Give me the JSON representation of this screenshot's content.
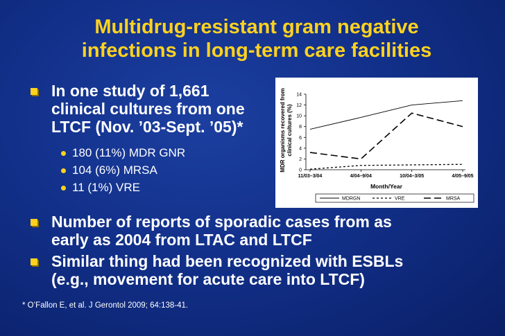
{
  "slide": {
    "title_line1": "Multidrug-resistant gram negative",
    "title_line2": "infections in long-term care facilities",
    "bullet1_lines": [
      "In one study of 1,661",
      "clinical cultures from one",
      "LTCF (Nov. ’03-Sept. ’05)*"
    ],
    "sub_bullets": [
      "180 (11%) MDR GNR",
      "104 (6%) MRSA",
      "11 (1%) VRE"
    ],
    "bullet2_lines": [
      "Number of reports of sporadic cases from as",
      "early as 2004 from LTAC and LTCF"
    ],
    "bullet3_lines": [
      "Similar thing had been recognized with ESBLs",
      "(e.g., movement for acute care into LTCF)"
    ],
    "footnote": "* O’Fallon E, et al. J Gerontol 2009; 64:138-41."
  },
  "chart_data": {
    "type": "line",
    "categories": [
      "11/03–3/04",
      "4/04–9/04",
      "10/04–3/05",
      "4/05–9/05"
    ],
    "ylabel_line1": "MDR organisms recovered from",
    "ylabel_line2": "clinical cultures (%)",
    "xlabel": "Month/Year",
    "ylim": [
      0,
      14
    ],
    "yticks": [
      "0",
      "2",
      "4",
      "6",
      "8",
      "10",
      "12",
      "14"
    ],
    "series": [
      {
        "name": "MDRGN",
        "values": [
          7.5,
          9.7,
          12,
          12.8
        ],
        "style": "solid"
      },
      {
        "name": "VRE",
        "values": [
          0.1,
          0.8,
          0.9,
          1
        ],
        "style": "dashed"
      },
      {
        "name": "MRSA",
        "values": [
          3.2,
          2,
          10.5,
          8
        ],
        "style": "longdash"
      }
    ],
    "legend_placement": "bottom"
  },
  "colors": {
    "title": "#ffd21f",
    "bullet_marker": "#ffd21f",
    "text": "#ffffff"
  }
}
